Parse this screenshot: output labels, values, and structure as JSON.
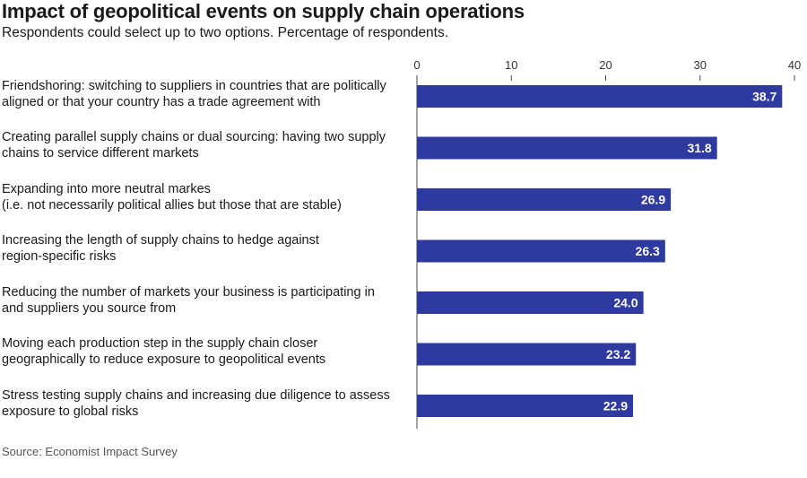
{
  "chart_data": {
    "type": "bar",
    "orientation": "horizontal",
    "title": "Impact of geopolitical events on supply chain operations",
    "subtitle": "Respondents could select up to two options. Percentage of respondents.",
    "source": "Source: Economist Impact Survey",
    "xlim": [
      0,
      40
    ],
    "ticks": [
      0,
      10,
      20,
      30,
      40
    ],
    "tick_labels": [
      "0",
      "10",
      "20",
      "30",
      "40"
    ],
    "categories": [
      [
        "Friendshoring: switching to suppliers in countries that are politically",
        "aligned or that your country has a trade agreement with"
      ],
      [
        "Creating parallel supply chains or dual sourcing: having two supply",
        "chains to service different markets"
      ],
      [
        "Expanding into more neutral markes",
        "(i.e. not necessarily political allies but those that are stable)"
      ],
      [
        "Increasing the length of supply chains to hedge against",
        "region-specific risks"
      ],
      [
        "Reducing the number of markets your business is participating in",
        "and suppliers you source from"
      ],
      [
        "Moving each production step in the supply chain closer",
        "geographically to reduce exposure to geopolitical events"
      ],
      [
        "Stress testing supply chains and increasing due diligence to assess",
        "exposure to global risks"
      ]
    ],
    "values": [
      38.7,
      31.8,
      26.9,
      26.3,
      24.0,
      23.2,
      22.9
    ],
    "value_labels": [
      "38.7",
      "31.8",
      "26.9",
      "26.3",
      "24.0",
      "23.2",
      "22.9"
    ],
    "bar_color": "#2e3a9f",
    "grid": false,
    "axis_position": "top"
  }
}
